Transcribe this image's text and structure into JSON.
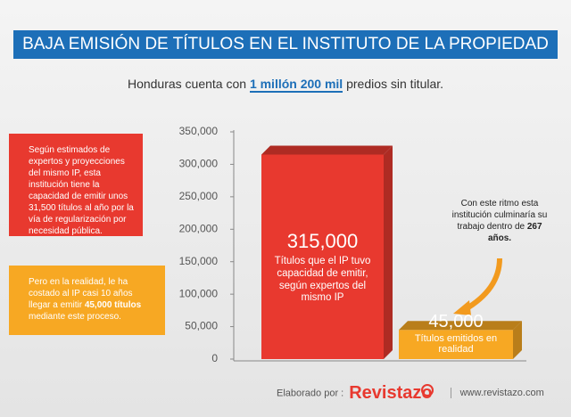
{
  "chart_data": {
    "type": "bar",
    "title": "BAJA EMISIÓN DE TÍTULOS EN EL INSTITUTO DE LA PROPIEDAD",
    "subtitle_parts": [
      "Honduras cuenta con",
      "1 millón 200 mil",
      "predios sin titular."
    ],
    "categories": [
      "Títulos que el IP tuvo capacidad de emitir, según expertos del mismo IP",
      "Títulos emitidos en realidad"
    ],
    "values": [
      315000,
      45000
    ],
    "value_labels": [
      "315,000",
      "45,000"
    ],
    "colors": [
      "#e8392f",
      "#f7a823"
    ],
    "ylim": [
      0,
      350000
    ],
    "yticks": [
      0,
      {
        "value": 50000,
        "label": "50,000"
      },
      {
        "value": 100000,
        "label": "100,000"
      },
      {
        "value": 150000,
        "label": "150,000"
      },
      {
        "value": 200000,
        "label": "200,000"
      },
      {
        "value": 250000,
        "label": "250,000"
      },
      {
        "value": 300000,
        "label": "300,000"
      },
      {
        "value": 350000,
        "label": "350,000"
      }
    ],
    "grid": false,
    "annotations": [
      {
        "parts": [
          "Según estimados de expertos y proyecciones del mismo IP, esta institución tiene la capacidad de emitir unos 31,500 títulos al año por la vía de regularización por necesidad pública."
        ]
      },
      {
        "parts": [
          "Pero en la realidad, le ha costado al IP casi 10 años llegar a emitir",
          "45,000 títulos",
          "mediante este proceso."
        ]
      },
      {
        "parts": [
          "Con este ritmo esta institución culminaría su trabajo dentro de",
          "267 años."
        ]
      }
    ]
  },
  "footer": {
    "credit": "Elaborado por :",
    "brand": "Revistazo",
    "url": "www.revistazo.com"
  }
}
